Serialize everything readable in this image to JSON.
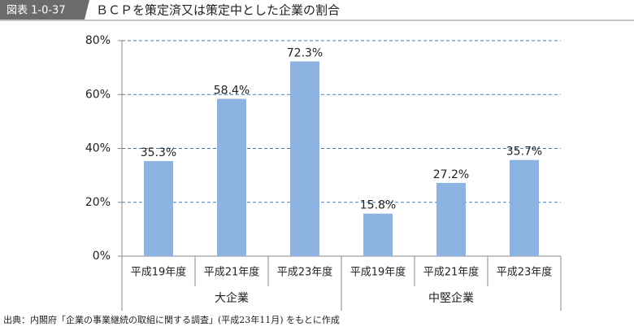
{
  "chart_data": {
    "type": "bar",
    "figure_label": "図表 1-0-37",
    "title": "ＢＣＰを策定済又は策定中とした企業の割合",
    "groups": [
      {
        "name": "大企業",
        "categories": [
          "平成19年度",
          "平成21年度",
          "平成23年度"
        ],
        "values": [
          35.3,
          58.4,
          72.3
        ],
        "value_labels": [
          "35.3%",
          "58.4%",
          "72.3%"
        ]
      },
      {
        "name": "中堅企業",
        "categories": [
          "平成19年度",
          "平成21年度",
          "平成23年度"
        ],
        "values": [
          15.8,
          27.2,
          35.7
        ],
        "value_labels": [
          "15.8%",
          "27.2%",
          "35.7%"
        ]
      }
    ],
    "color": "#8db3e2",
    "ylim": [
      0,
      80
    ],
    "yticks": [
      {
        "value": 0,
        "label": "0%"
      },
      {
        "value": 20,
        "label": "20%"
      },
      {
        "value": 40,
        "label": "40%"
      },
      {
        "value": 60,
        "label": "60%"
      },
      {
        "value": 80,
        "label": "80%"
      }
    ],
    "grid": true,
    "source": "出典：内閣府「企業の事業継続の取組に関する調査」(平成23年11月) をもとに作成"
  }
}
